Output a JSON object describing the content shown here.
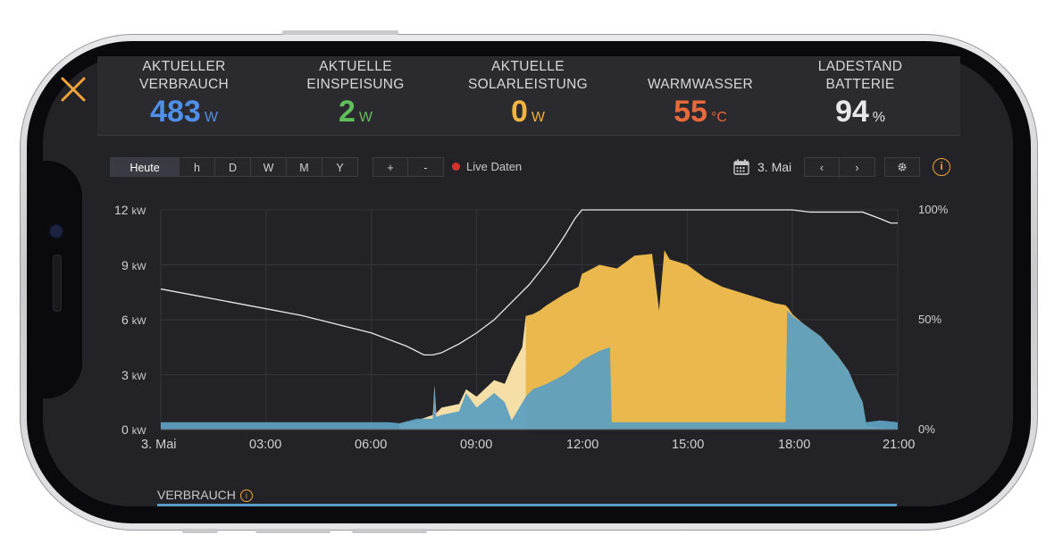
{
  "stats": [
    {
      "label": "AKTUELLER\nVERBRAUCH",
      "value": "483",
      "unit": "W",
      "color": "#4f8fe8"
    },
    {
      "label": "AKTUELLE\nEINSPEISUNG",
      "value": "2",
      "unit": "W",
      "color": "#5fc05a"
    },
    {
      "label": "AKTUELLE\nSOLARLEISTUNG",
      "value": "0",
      "unit": "W",
      "color": "#f0b440"
    },
    {
      "label": "WARMWASSER",
      "value": "55",
      "unit": "°C",
      "color": "#e8693a"
    },
    {
      "label": "LADESTAND\nBATTERIE",
      "value": "94",
      "unit": "%",
      "color": "#e8e8ea"
    }
  ],
  "range_buttons": [
    "Heute",
    "h",
    "D",
    "W",
    "M",
    "Y"
  ],
  "zoom_buttons": [
    "+",
    "-"
  ],
  "live_label": "Live Daten",
  "date_label": "3. Mai",
  "nav_buttons": [
    "‹",
    "›"
  ],
  "section_label": "VERBRAUCH",
  "chart_data": {
    "type": "area",
    "y_left_ticks": [
      {
        "value": "12",
        "unit": "kW"
      },
      {
        "value": "9",
        "unit": "kW"
      },
      {
        "value": "6",
        "unit": "kW"
      },
      {
        "value": "3",
        "unit": "kW"
      },
      {
        "value": "0",
        "unit": "kW"
      }
    ],
    "y_right_ticks": [
      "100%",
      "50%",
      "0%"
    ],
    "x_ticks": [
      "3. Mai",
      "03:00",
      "06:00",
      "09:00",
      "12:00",
      "15:00",
      "18:00",
      "21:00"
    ],
    "xlim_hours": [
      0,
      21
    ],
    "ylim_kw": [
      0,
      12
    ],
    "ylim_pct": [
      0,
      100
    ],
    "colors": {
      "solar": "#eab84c",
      "solar_light": "#f6dfa6",
      "consumption": "#5e9fbf",
      "battery": "#e8e8ea",
      "grid": "#34343a"
    },
    "series": [
      {
        "key": "solar",
        "x": [
          6.8,
          7.3,
          7.75,
          7.8,
          7.85,
          8.0,
          8.5,
          8.7,
          9.0,
          9.5,
          9.8,
          10.0,
          10.3,
          10.4,
          10.6,
          10.8,
          11.0,
          11.5,
          11.9,
          12.0,
          12.5,
          13.0,
          13.5,
          14.0,
          14.2,
          14.35,
          14.5,
          15.0,
          15.5,
          16.0,
          16.5,
          17.0,
          17.5,
          17.8,
          17.9,
          18.0,
          18.3,
          18.8,
          19.3,
          19.6,
          19.8,
          20.0,
          20.1,
          20.5,
          21.0
        ],
        "y": [
          0.3,
          0.5,
          0.8,
          2.4,
          0.9,
          1.2,
          1.4,
          2.2,
          1.8,
          2.7,
          2.5,
          3.4,
          4.5,
          6.2,
          6.3,
          6.5,
          6.8,
          7.4,
          7.8,
          8.5,
          9.0,
          8.8,
          9.5,
          9.6,
          6.5,
          9.8,
          9.3,
          9.0,
          8.3,
          7.8,
          7.5,
          7.2,
          6.9,
          6.8,
          6.6,
          6.3,
          5.8,
          5.1,
          4.0,
          3.2,
          2.3,
          1.5,
          0.2,
          0.1,
          0.0
        ]
      },
      {
        "key": "consumption",
        "x": [
          0,
          6.5,
          6.8,
          7.3,
          7.75,
          7.8,
          7.85,
          8.0,
          8.5,
          8.7,
          9.0,
          9.5,
          9.8,
          10.0,
          10.4,
          10.6,
          11.0,
          11.5,
          11.9,
          12.0,
          12.5,
          12.8,
          12.85,
          13.0,
          14.0,
          14.3,
          14.4,
          15.0,
          16.0,
          17.0,
          17.8,
          17.85,
          18.0,
          18.3,
          18.8,
          19.3,
          19.6,
          19.8,
          20.0,
          20.1,
          20.5,
          21.0
        ],
        "y": [
          0.4,
          0.4,
          0.35,
          0.6,
          0.6,
          2.3,
          0.7,
          0.8,
          1.0,
          2.0,
          1.2,
          2.0,
          1.5,
          0.5,
          1.8,
          2.2,
          2.5,
          3.0,
          3.6,
          3.8,
          4.3,
          4.5,
          0.4,
          0.4,
          0.4,
          0.4,
          0.4,
          0.4,
          0.4,
          0.4,
          0.4,
          6.5,
          6.2,
          5.8,
          5.1,
          4.0,
          3.2,
          2.3,
          1.5,
          0.4,
          0.5,
          0.4
        ]
      },
      {
        "key": "battery_pct",
        "x": [
          0,
          1,
          2,
          3,
          4,
          5,
          6,
          7,
          7.5,
          7.75,
          8,
          8.5,
          9,
          9.5,
          10,
          10.5,
          11,
          11.5,
          11.8,
          12,
          13,
          14,
          15,
          16,
          17,
          18,
          18.5,
          19,
          19.5,
          20,
          20.5,
          20.8,
          21
        ],
        "y": [
          64,
          61,
          58,
          55,
          52,
          48,
          44,
          38,
          34,
          34,
          35,
          39,
          44,
          50,
          58,
          66,
          76,
          88,
          96,
          100,
          100,
          100,
          100,
          100,
          100,
          100,
          99,
          99,
          99,
          99,
          96,
          94,
          94
        ]
      }
    ]
  }
}
